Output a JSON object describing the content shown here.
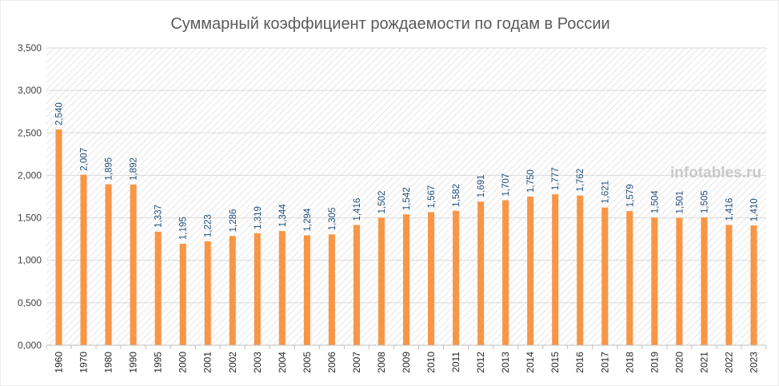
{
  "chart_data": {
    "type": "bar",
    "title": "Суммарный коэффициент рождаемости по годам в России",
    "xlabel": "",
    "ylabel": "",
    "ylim": [
      0,
      3.5
    ],
    "yticks": [
      0,
      0.5,
      1,
      1.5,
      2,
      2.5,
      3,
      3.5
    ],
    "ytick_labels": [
      "0,000",
      "0,500",
      "1,000",
      "1,500",
      "2,000",
      "2,500",
      "3,000",
      "3,500"
    ],
    "categories": [
      "1960",
      "1970",
      "1980",
      "1990",
      "1995",
      "2000",
      "2001",
      "2002",
      "2003",
      "2004",
      "2005",
      "2006",
      "2007",
      "2008",
      "2009",
      "2010",
      "2011",
      "2012",
      "2013",
      "2014",
      "2015",
      "2016",
      "2017",
      "2018",
      "2019",
      "2020",
      "2021",
      "2022",
      "2023"
    ],
    "values": [
      2.54,
      2.007,
      1.895,
      1.892,
      1.337,
      1.195,
      1.223,
      1.286,
      1.319,
      1.344,
      1.294,
      1.305,
      1.416,
      1.502,
      1.542,
      1.567,
      1.582,
      1.691,
      1.707,
      1.75,
      1.777,
      1.762,
      1.621,
      1.579,
      1.504,
      1.501,
      1.505,
      1.416,
      1.41
    ],
    "data_labels": [
      "2,540",
      "2,007",
      "1,895",
      "1,892",
      "1,337",
      "1,195",
      "1,223",
      "1,286",
      "1,319",
      "1,344",
      "1,294",
      "1,305",
      "1,416",
      "1,502",
      "1,542",
      "1,567",
      "1,582",
      "1,691",
      "1,707",
      "1,750",
      "1,777",
      "1,762",
      "1,621",
      "1,579",
      "1,504",
      "1,501",
      "1,505",
      "1,416",
      "1,410"
    ],
    "grid": true,
    "legend": "none",
    "watermark": "infotables.ru",
    "colors": {
      "bar": "#f79646",
      "label": "#1f4e79",
      "grid": "#d9d9d9",
      "title": "#5a5a5a"
    }
  }
}
